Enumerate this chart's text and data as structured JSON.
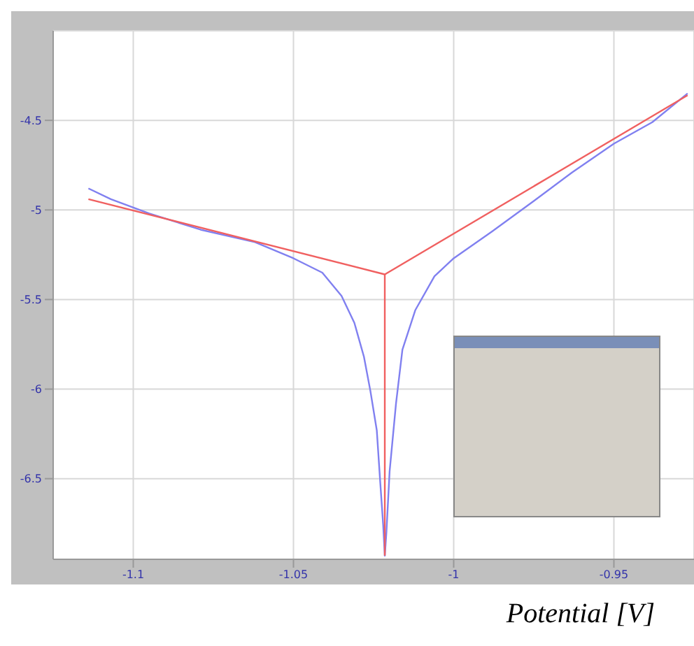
{
  "chart_data": {
    "type": "line",
    "xlabel": "Potential [V]",
    "xlim": [
      -1.125,
      -0.925
    ],
    "xticks": [
      -1.1,
      -1.05,
      -1,
      -0.95
    ],
    "ylim": [
      -6.95,
      -4
    ],
    "yticks": [
      -4.5,
      -5,
      -5.5,
      -6,
      -6.5
    ],
    "grid": true,
    "marker": "none",
    "series": [
      {
        "color": "#8080f0",
        "x": [
          -1.114,
          -1.107,
          -1.095,
          -1.079,
          -1.062,
          -1.05,
          -1.041,
          -1.035,
          -1.031,
          -1.028,
          -1.026,
          -1.024,
          -1.023,
          -1.022,
          -1.0215,
          -1.021,
          -1.02,
          -1.018,
          -1.016,
          -1.012,
          -1.006,
          -1,
          -0.988,
          -0.975,
          -0.963,
          -0.95,
          -0.938,
          -0.927
        ],
        "values": [
          -4.88,
          -4.94,
          -5.02,
          -5.11,
          -5.18,
          -5.27,
          -5.35,
          -5.48,
          -5.63,
          -5.82,
          -6.01,
          -6.23,
          -6.5,
          -6.76,
          -6.93,
          -6.8,
          -6.46,
          -6.08,
          -5.78,
          -5.56,
          -5.37,
          -5.27,
          -5.12,
          -4.95,
          -4.79,
          -4.63,
          -4.51,
          -4.35
        ]
      },
      {
        "color": "#f06060",
        "x": [
          -1.114,
          -1.0215,
          -0.927
        ],
        "values": [
          -4.94,
          -5.36,
          -4.36
        ]
      },
      {
        "color": "#f06060",
        "x": [
          -1.0215,
          -1.0215
        ],
        "values": [
          -5.36,
          -6.93
        ]
      }
    ]
  }
}
